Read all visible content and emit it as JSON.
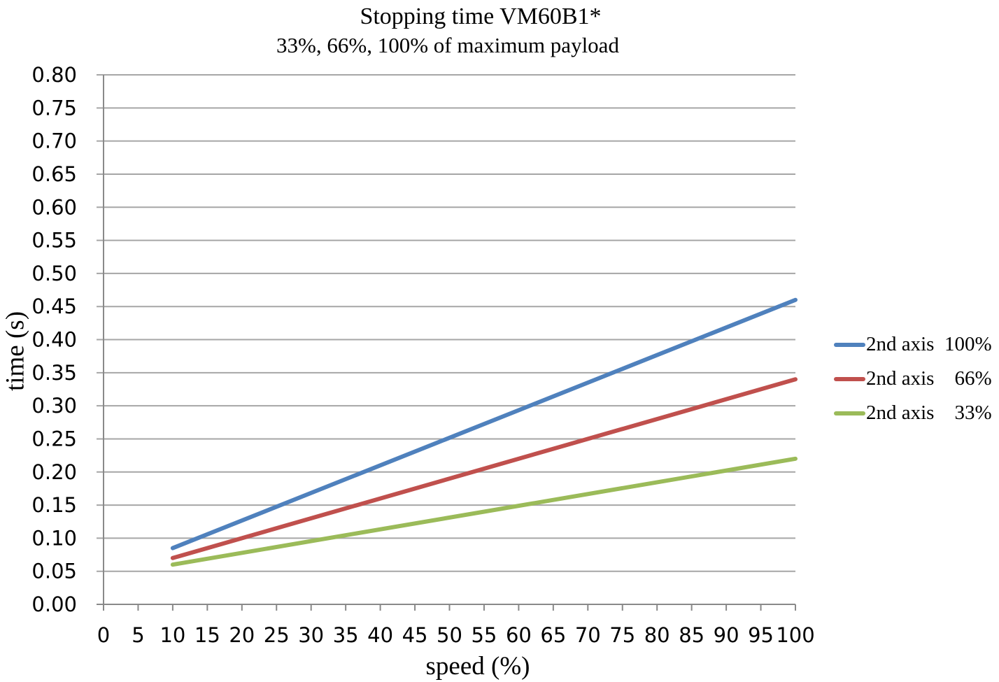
{
  "colors": {
    "background": "#FFFFFF",
    "grid": "#A6A6A6",
    "axis": "#898989",
    "text": "#000000"
  },
  "chart_data": {
    "type": "line",
    "title": "Stopping time VM60B1*",
    "subtitle": "33%, 66%, 100% of maximum payload",
    "xlabel": "speed (%)",
    "ylabel": "time (s)",
    "xlim": [
      0,
      100
    ],
    "ylim": [
      0,
      0.8
    ],
    "grid": "horizontal-only",
    "legend_position": "right",
    "line_shape": "straight",
    "x_ticks": [
      0,
      5,
      10,
      15,
      20,
      25,
      30,
      35,
      40,
      45,
      50,
      55,
      60,
      65,
      70,
      75,
      80,
      85,
      90,
      95,
      100
    ],
    "x_tick_labels": [
      "0",
      "5",
      "10",
      "15",
      "20",
      "25",
      "30",
      "35",
      "40",
      "45",
      "50",
      "55",
      "60",
      "65",
      "70",
      "75",
      "80",
      "85",
      "90",
      "95",
      "100"
    ],
    "y_ticks": [
      0,
      0.05,
      0.1,
      0.15,
      0.2,
      0.25,
      0.3,
      0.35,
      0.4,
      0.45,
      0.5,
      0.55,
      0.6,
      0.65,
      0.7,
      0.75,
      0.8
    ],
    "y_tick_labels": [
      "0.00",
      "0.05",
      "0.10",
      "0.15",
      "0.20",
      "0.25",
      "0.30",
      "0.35",
      "0.40",
      "0.45",
      "0.50",
      "0.55",
      "0.60",
      "0.65",
      "0.70",
      "0.75",
      "0.80"
    ],
    "series": [
      {
        "label": "2nd axis  100%",
        "name": "2nd axis 100%",
        "color": "#4F81BD",
        "x": [
          10,
          100
        ],
        "values": [
          0.085,
          0.46
        ]
      },
      {
        "label": "2nd axis    66%",
        "name": "2nd axis 66%",
        "color": "#C0504D",
        "x": [
          10,
          100
        ],
        "values": [
          0.07,
          0.34
        ]
      },
      {
        "label": "2nd axis    33%",
        "name": "2nd axis 33%",
        "color": "#9BBB59",
        "x": [
          10,
          100
        ],
        "values": [
          0.06,
          0.22
        ]
      }
    ]
  }
}
